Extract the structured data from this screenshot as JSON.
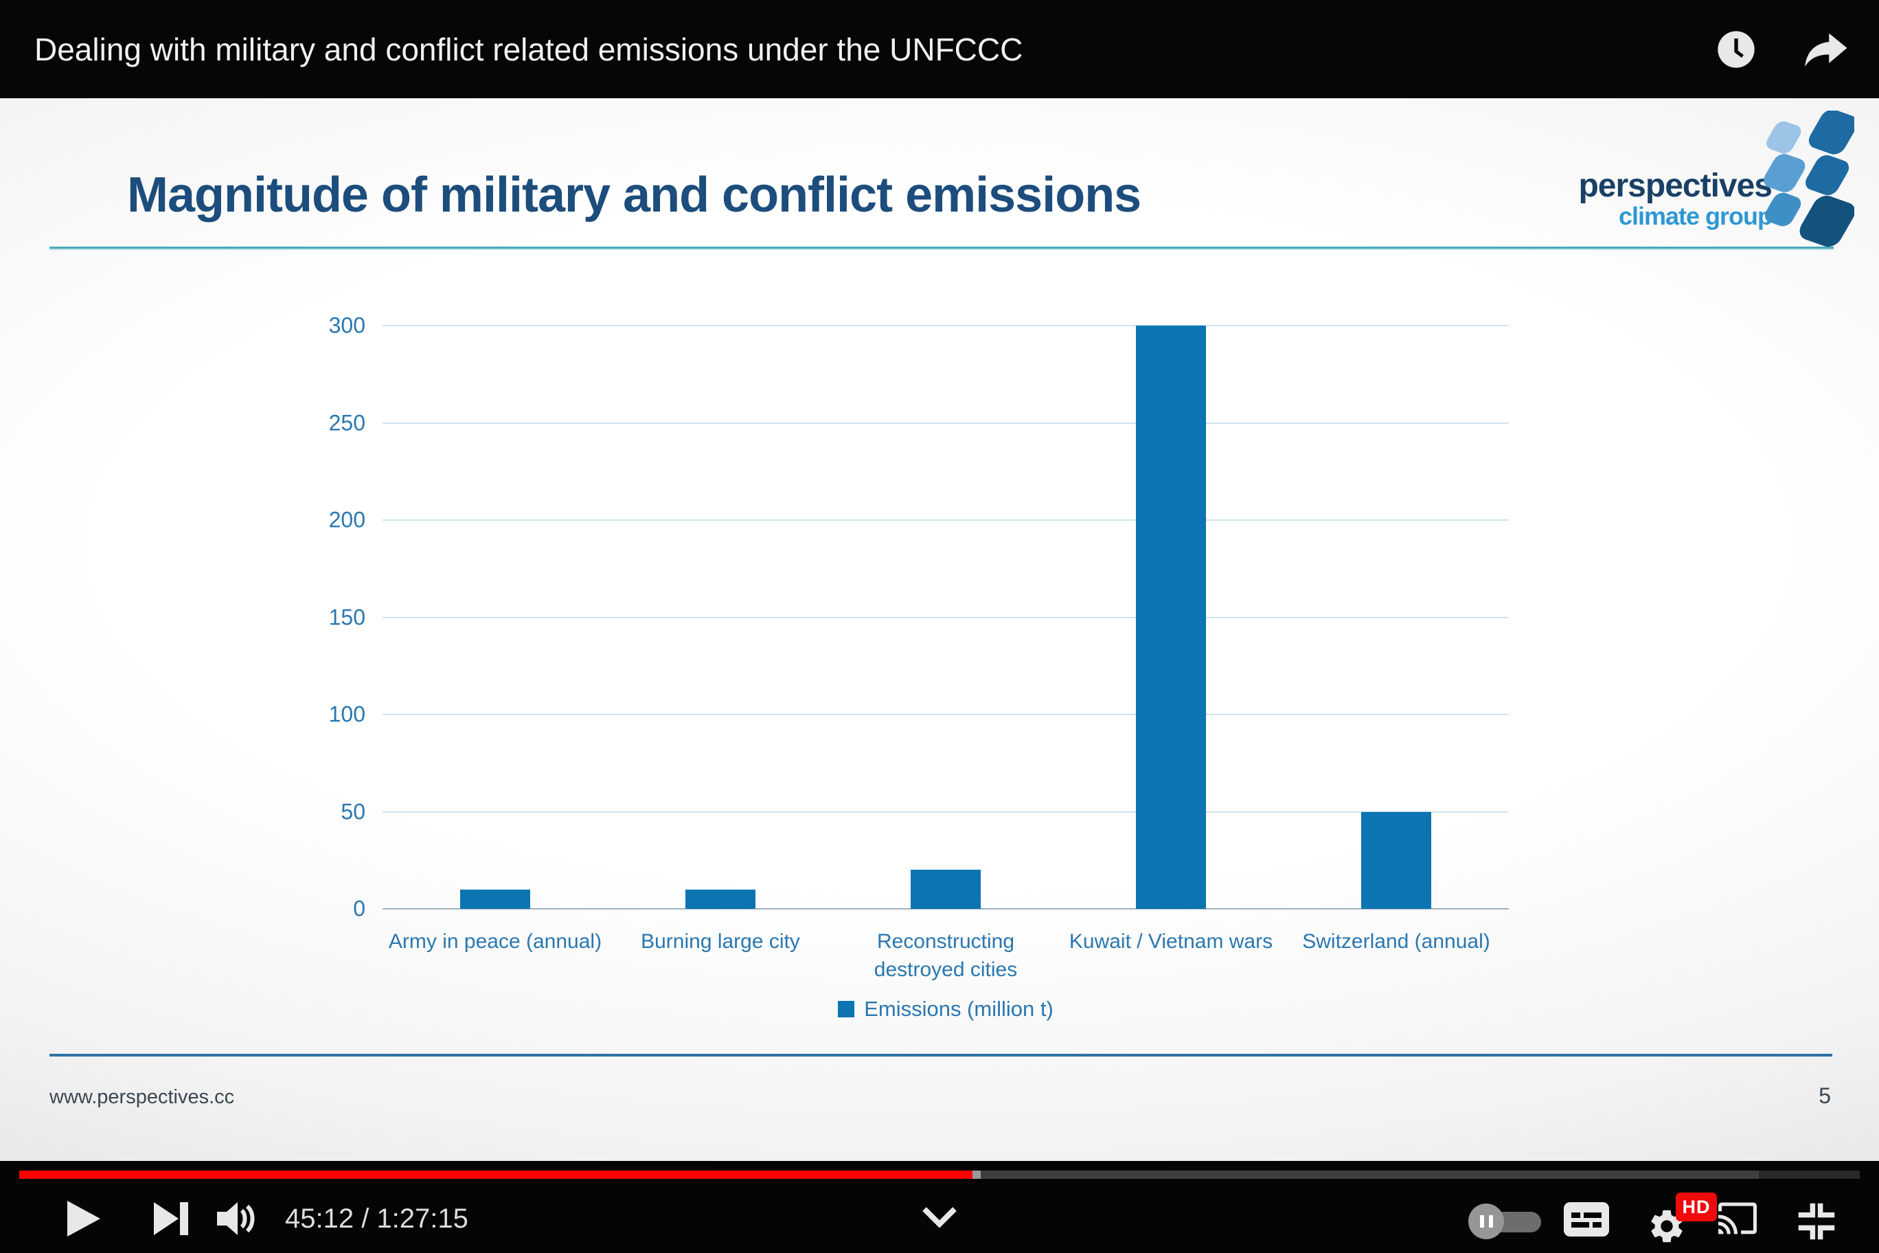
{
  "player": {
    "top_bar": {
      "title": "Dealing with military and conflict related emissions under the UNFCCC",
      "icons": [
        "watch-later-icon",
        "share-icon"
      ]
    },
    "controls": {
      "time_display": "45:12 / 1:27:15",
      "progress_percent": 51.8,
      "buffer_percent": 94.5,
      "hd_badge_label": "HD",
      "icons": [
        "play-icon",
        "next-icon",
        "volume-icon",
        "chevron-down-icon",
        "autoplay-toggle",
        "subtitles-icon",
        "settings-icon",
        "cast-icon",
        "fullscreen-exit-icon"
      ]
    }
  },
  "slide": {
    "title": "Magnitude of military and conflict emissions",
    "logo": {
      "line1": "perspectives",
      "line2": "climate group"
    },
    "footer": {
      "url": "www.perspectives.cc",
      "page_number": "5"
    }
  },
  "chart_data": {
    "type": "bar",
    "categories": [
      "Army in peace (annual)",
      "Burning large city",
      "Reconstructing destroyed cities",
      "Kuwait / Vietnam wars",
      "Switzerland (annual)"
    ],
    "values": [
      10,
      10,
      20,
      300,
      50
    ],
    "series_label": "Emissions (million t)",
    "title": "Magnitude of military and conflict emissions",
    "xlabel": "",
    "ylabel": "",
    "ylim": [
      0,
      300
    ],
    "yticks": [
      0,
      50,
      100,
      150,
      200,
      250,
      300
    ],
    "grid": true,
    "legend_position": "bottom",
    "bar_color": "#0c74b0"
  },
  "colors": {
    "bar_blue": "#0c74b0",
    "label_blue": "#2a77b0",
    "title_blue": "#1c4d7c",
    "underline_teal": "#46aab8",
    "footer_rule_blue": "#2d73a7",
    "progress_red": "#ff0000",
    "hd_badge_red": "#ef0b0b"
  }
}
